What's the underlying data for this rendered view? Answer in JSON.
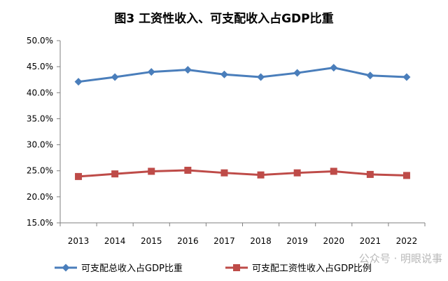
{
  "chart_data": {
    "type": "line",
    "title": "图3 工资性收入、可支配收入占GDP比重",
    "categories": [
      "2013",
      "2014",
      "2015",
      "2016",
      "2017",
      "2018",
      "2019",
      "2020",
      "2021",
      "2022"
    ],
    "series": [
      {
        "name": "可支配总收入占GDP比重",
        "color": "#4a7ebb",
        "marker": "diamond",
        "values": [
          42.1,
          43.0,
          44.0,
          44.4,
          43.5,
          43.0,
          43.8,
          44.8,
          43.3,
          43.0
        ]
      },
      {
        "name": "可支配工资性收入占GDP比例",
        "color": "#be4b48",
        "marker": "square",
        "values": [
          23.9,
          24.4,
          24.9,
          25.1,
          24.6,
          24.2,
          24.6,
          24.9,
          24.3,
          24.1
        ]
      }
    ],
    "yticks": [
      "50.0%",
      "45.0%",
      "40.0%",
      "35.0%",
      "30.0%",
      "25.0%",
      "20.0%",
      "15.0%"
    ],
    "ylim": [
      15,
      50
    ],
    "grid": false,
    "legend": "bottom"
  },
  "watermark": "公众号 · 明眼说事"
}
